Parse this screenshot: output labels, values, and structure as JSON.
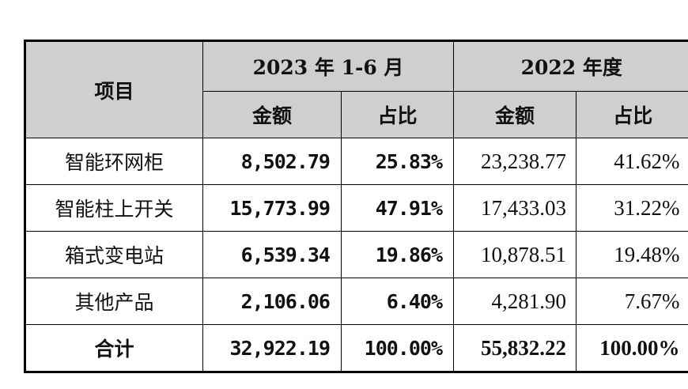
{
  "table": {
    "header": {
      "item": "项目",
      "groups": [
        "2023 年 1-6 月",
        "2022 年度"
      ],
      "subheaders": [
        "金额",
        "占比",
        "金额",
        "占比"
      ]
    },
    "rows": [
      [
        "智能环网柜",
        "8,502.79",
        "25.83%",
        "23,238.77",
        "41.62%"
      ],
      [
        "智能柱上开关",
        "15,773.99",
        "47.91%",
        "17,433.03",
        "31.22%"
      ],
      [
        "箱式变电站",
        "6,539.34",
        "19.86%",
        "10,878.51",
        "19.48%"
      ],
      [
        "其他产品",
        "2,106.06",
        "6.40%",
        "4,281.90",
        "7.67%"
      ],
      [
        "合计",
        "32,922.19",
        "100.00%",
        "55,832.22",
        "100.00%"
      ]
    ]
  }
}
